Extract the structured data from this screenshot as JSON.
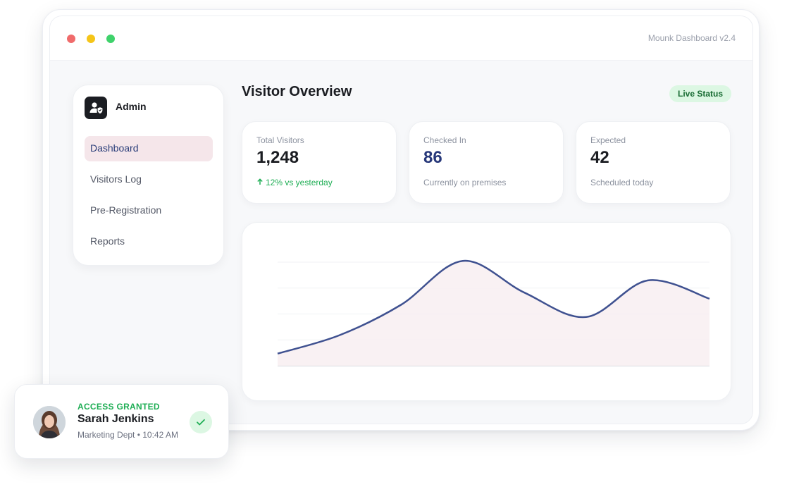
{
  "window": {
    "app_version": "Mounk Dashboard v2.4"
  },
  "sidebar": {
    "user_name": "Admin",
    "items": [
      {
        "label": "Dashboard",
        "active": true
      },
      {
        "label": "Visitors Log",
        "active": false
      },
      {
        "label": "Pre-Registration",
        "active": false
      },
      {
        "label": "Reports",
        "active": false
      }
    ]
  },
  "main": {
    "title": "Visitor Overview",
    "status_badge": "Live Status",
    "stats": [
      {
        "label": "Total Visitors",
        "value": "1,248",
        "sub": "12% vs yesterday",
        "sub_color": "#1fae55"
      },
      {
        "label": "Checked In",
        "value": "86",
        "sub": "Currently on premises",
        "value_color": "#27387a"
      },
      {
        "label": "Expected",
        "value": "42",
        "sub": "Scheduled today"
      }
    ]
  },
  "chart_data": {
    "type": "area",
    "x": [
      0,
      1,
      2,
      3,
      4,
      5,
      6,
      7
    ],
    "values": [
      10,
      25,
      50,
      86,
      60,
      40,
      70,
      55
    ],
    "ylim": [
      0,
      100
    ],
    "grid": true,
    "line_color": "#3f5190",
    "fill_color": "#f8eef1"
  },
  "toast": {
    "status": "ACCESS GRANTED",
    "name": "Sarah Jenkins",
    "meta": "Marketing Dept • 10:42 AM"
  },
  "icons": [
    "window-close-dot",
    "window-minimize-dot",
    "window-maximize-dot",
    "admin-shield-icon",
    "arrow-up-icon",
    "checkmark-icon"
  ]
}
